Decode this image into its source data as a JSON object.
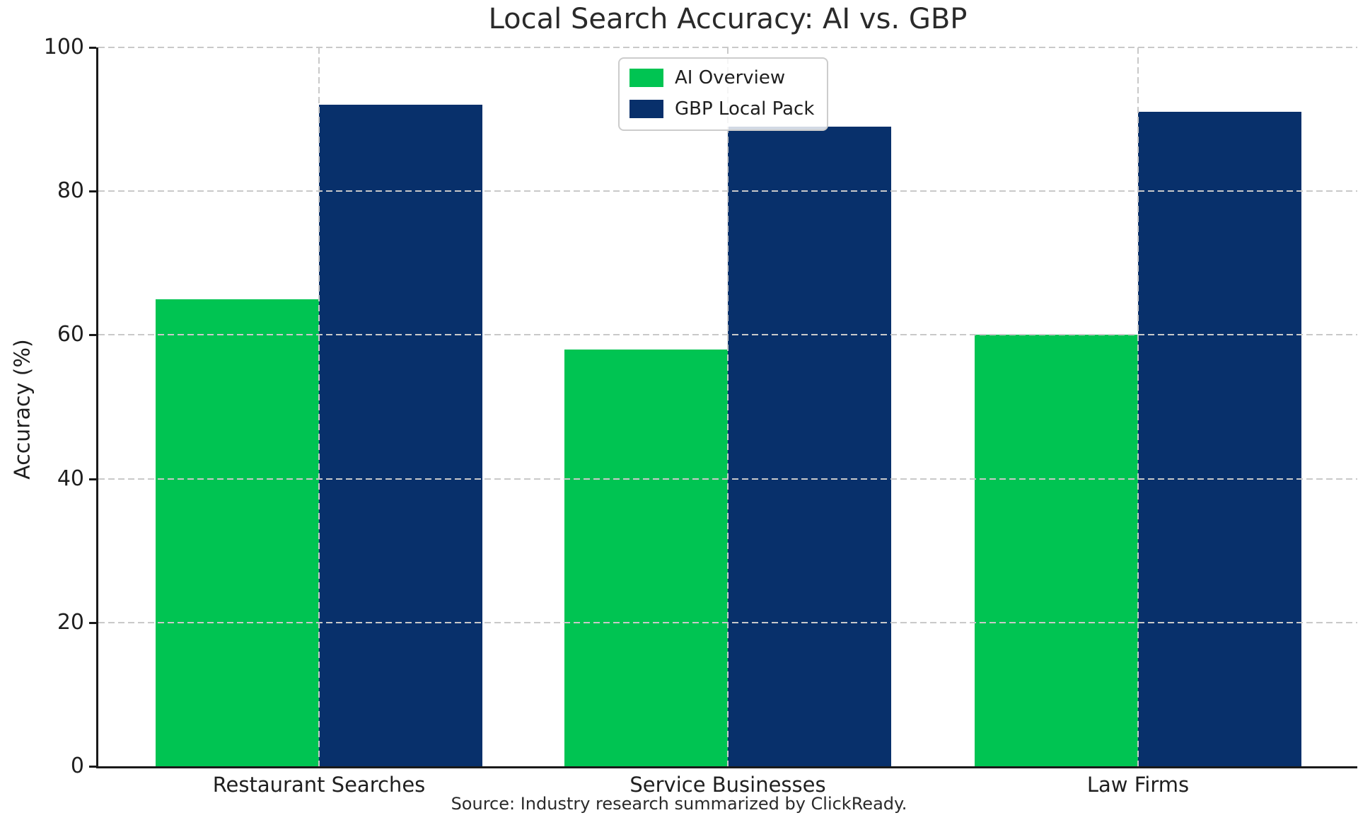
{
  "chart_data": {
    "type": "bar",
    "title": "Local Search Accuracy: AI vs. GBP",
    "ylabel": "Accuracy (%)",
    "xlabel": "",
    "categories": [
      "Restaurant Searches",
      "Service Businesses",
      "Law Firms"
    ],
    "series": [
      {
        "name": "AI Overview",
        "color": "#00C452",
        "values": [
          65,
          58,
          60
        ]
      },
      {
        "name": "GBP Local Pack",
        "color": "#08306B",
        "values": [
          92,
          89,
          91
        ]
      }
    ],
    "ylim": [
      0,
      100
    ],
    "yticks": [
      "0",
      "20",
      "40",
      "60",
      "80",
      "100"
    ],
    "ytick_values": [
      0,
      20,
      40,
      60,
      80,
      100
    ],
    "grid": "dashed, horizontal at y-ticks and vertical at category centers, drawn over bars",
    "legend_position": "upper center",
    "source_note": "Source: Industry research summarized by ClickReady."
  },
  "colors": {
    "background": "#ffffff",
    "text": "#1f1f1f",
    "grid": "#c9c9c9",
    "axis": "#1a1a1a",
    "legend_border": "#cccccc",
    "ai_overview_green": "#00C452",
    "gbp_local_pack_navy": "#08306B"
  }
}
